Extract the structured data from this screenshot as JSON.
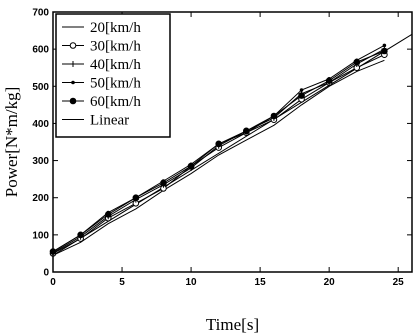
{
  "chart_data": {
    "type": "line",
    "xlabel": "Time[s]",
    "ylabel": "Power[N*m/kg]",
    "xlim": [
      0,
      26
    ],
    "ylim": [
      0,
      700
    ],
    "xticks": [
      0,
      5,
      10,
      15,
      20,
      25
    ],
    "yticks": [
      0,
      100,
      200,
      300,
      400,
      500,
      600,
      700
    ],
    "grid": false,
    "legend_position": "top-left",
    "series": [
      {
        "name": "20[km/h",
        "marker": "none",
        "x": [
          0,
          2,
          4,
          6,
          8,
          10,
          12,
          14,
          16,
          18,
          20,
          22,
          24
        ],
        "y": [
          45,
          80,
          130,
          170,
          220,
          265,
          315,
          355,
          395,
          450,
          500,
          540,
          570
        ]
      },
      {
        "name": "30[km/h",
        "marker": "circle-open",
        "x": [
          0,
          2,
          4,
          6,
          8,
          10,
          12,
          14,
          16,
          18,
          20,
          22,
          24
        ],
        "y": [
          50,
          90,
          145,
          185,
          225,
          285,
          335,
          375,
          410,
          465,
          510,
          550,
          585
        ]
      },
      {
        "name": "40[km/h",
        "marker": "plus",
        "x": [
          0,
          2,
          4,
          6,
          8,
          10,
          12,
          14,
          16,
          18,
          20,
          22,
          24
        ],
        "y": [
          52,
          95,
          150,
          195,
          235,
          280,
          340,
          380,
          415,
          480,
          510,
          560,
          600
        ]
      },
      {
        "name": "50[km/h",
        "marker": "dot-small",
        "x": [
          0,
          2,
          4,
          6,
          8,
          10,
          12,
          14,
          16,
          18,
          20,
          22,
          24
        ],
        "y": [
          55,
          100,
          160,
          200,
          245,
          290,
          345,
          375,
          420,
          490,
          520,
          570,
          610
        ]
      },
      {
        "name": "60[km/h",
        "marker": "circle-filled",
        "x": [
          0,
          2,
          4,
          6,
          8,
          10,
          12,
          14,
          16,
          18,
          20,
          22,
          24
        ],
        "y": [
          55,
          100,
          155,
          200,
          240,
          285,
          345,
          380,
          420,
          475,
          515,
          565,
          595
        ]
      },
      {
        "name": "Linear",
        "marker": "none",
        "x": [
          0,
          26
        ],
        "y": [
          45,
          640
        ]
      }
    ]
  }
}
